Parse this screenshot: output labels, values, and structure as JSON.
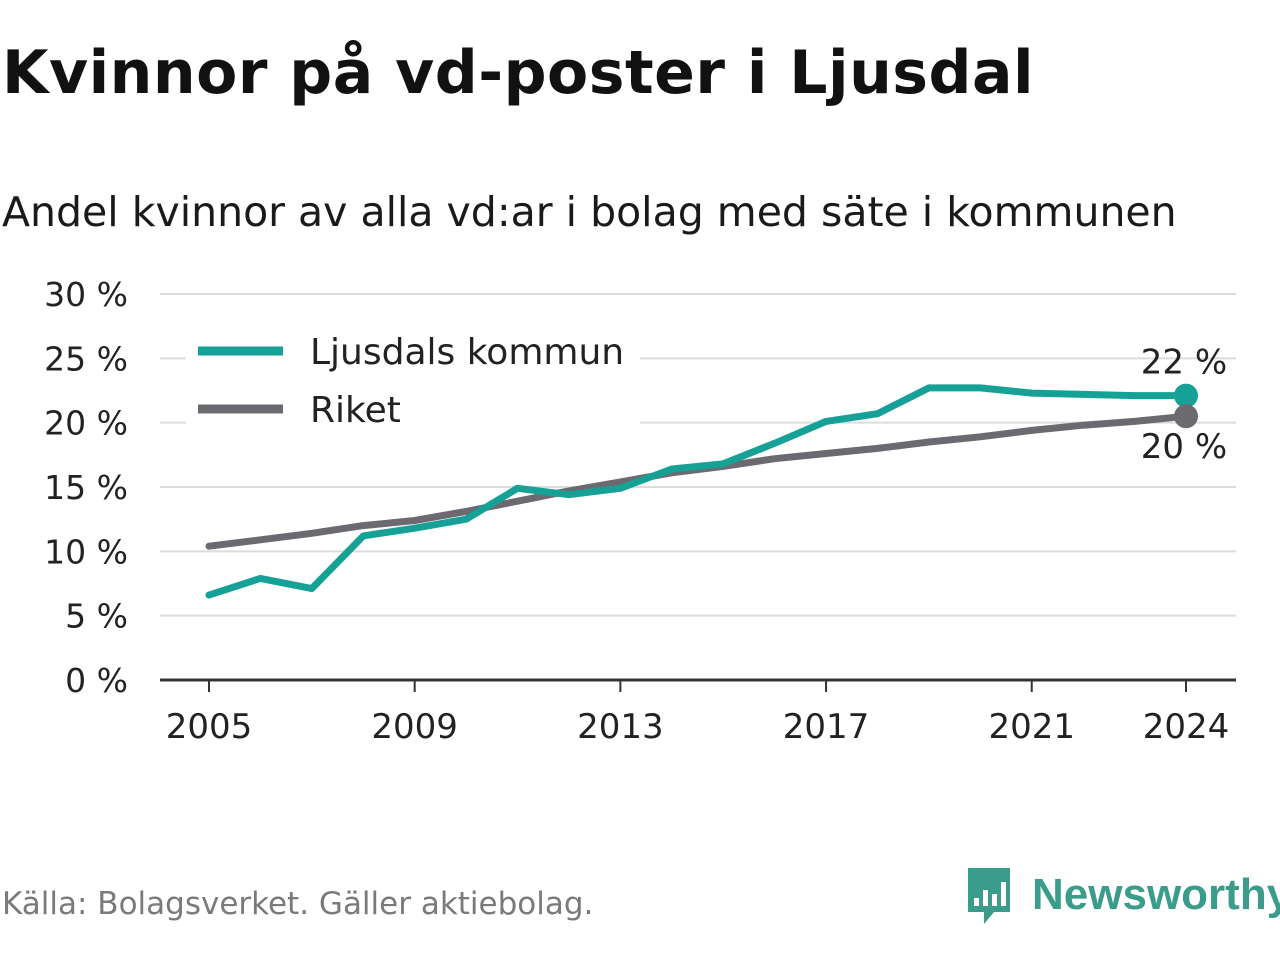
{
  "title": "Kvinnor på vd-poster i Ljusdal",
  "subtitle": "Andel kvinnor av alla vd:ar i bolag med säte i kommunen",
  "source": "Källa: Bolagsverket. Gäller aktiebolag.",
  "brand": {
    "name": "Newsworthy",
    "logo_icon": "newsworthy-logo-icon",
    "color": "#3a9c8a"
  },
  "chart_data": {
    "type": "line",
    "x": [
      2005,
      2006,
      2007,
      2008,
      2009,
      2010,
      2011,
      2012,
      2013,
      2014,
      2015,
      2016,
      2017,
      2018,
      2019,
      2020,
      2021,
      2022,
      2023,
      2024
    ],
    "series": [
      {
        "name": "Ljusdals kommun",
        "color": "#16a196",
        "values": [
          6.6,
          7.9,
          7.1,
          11.2,
          11.8,
          12.5,
          14.9,
          14.4,
          14.9,
          16.4,
          16.8,
          18.4,
          20.1,
          20.7,
          22.7,
          22.7,
          22.3,
          22.2,
          22.1,
          22.1
        ],
        "end_label": "22 %"
      },
      {
        "name": "Riket",
        "color": "#6c6a70",
        "values": [
          10.4,
          10.9,
          11.4,
          12.0,
          12.4,
          13.1,
          13.9,
          14.7,
          15.4,
          16.1,
          16.6,
          17.2,
          17.6,
          18.0,
          18.5,
          18.9,
          19.4,
          19.8,
          20.1,
          20.5
        ],
        "end_label": "20 %"
      }
    ],
    "y_ticks": [
      "0 %",
      "5 %",
      "10 %",
      "15 %",
      "20 %",
      "25 %",
      "30 %"
    ],
    "x_ticks": [
      "2005",
      "2009",
      "2013",
      "2017",
      "2021",
      "2024"
    ],
    "ylim": [
      0,
      30
    ],
    "grid": true,
    "legend_position": "top-left"
  }
}
